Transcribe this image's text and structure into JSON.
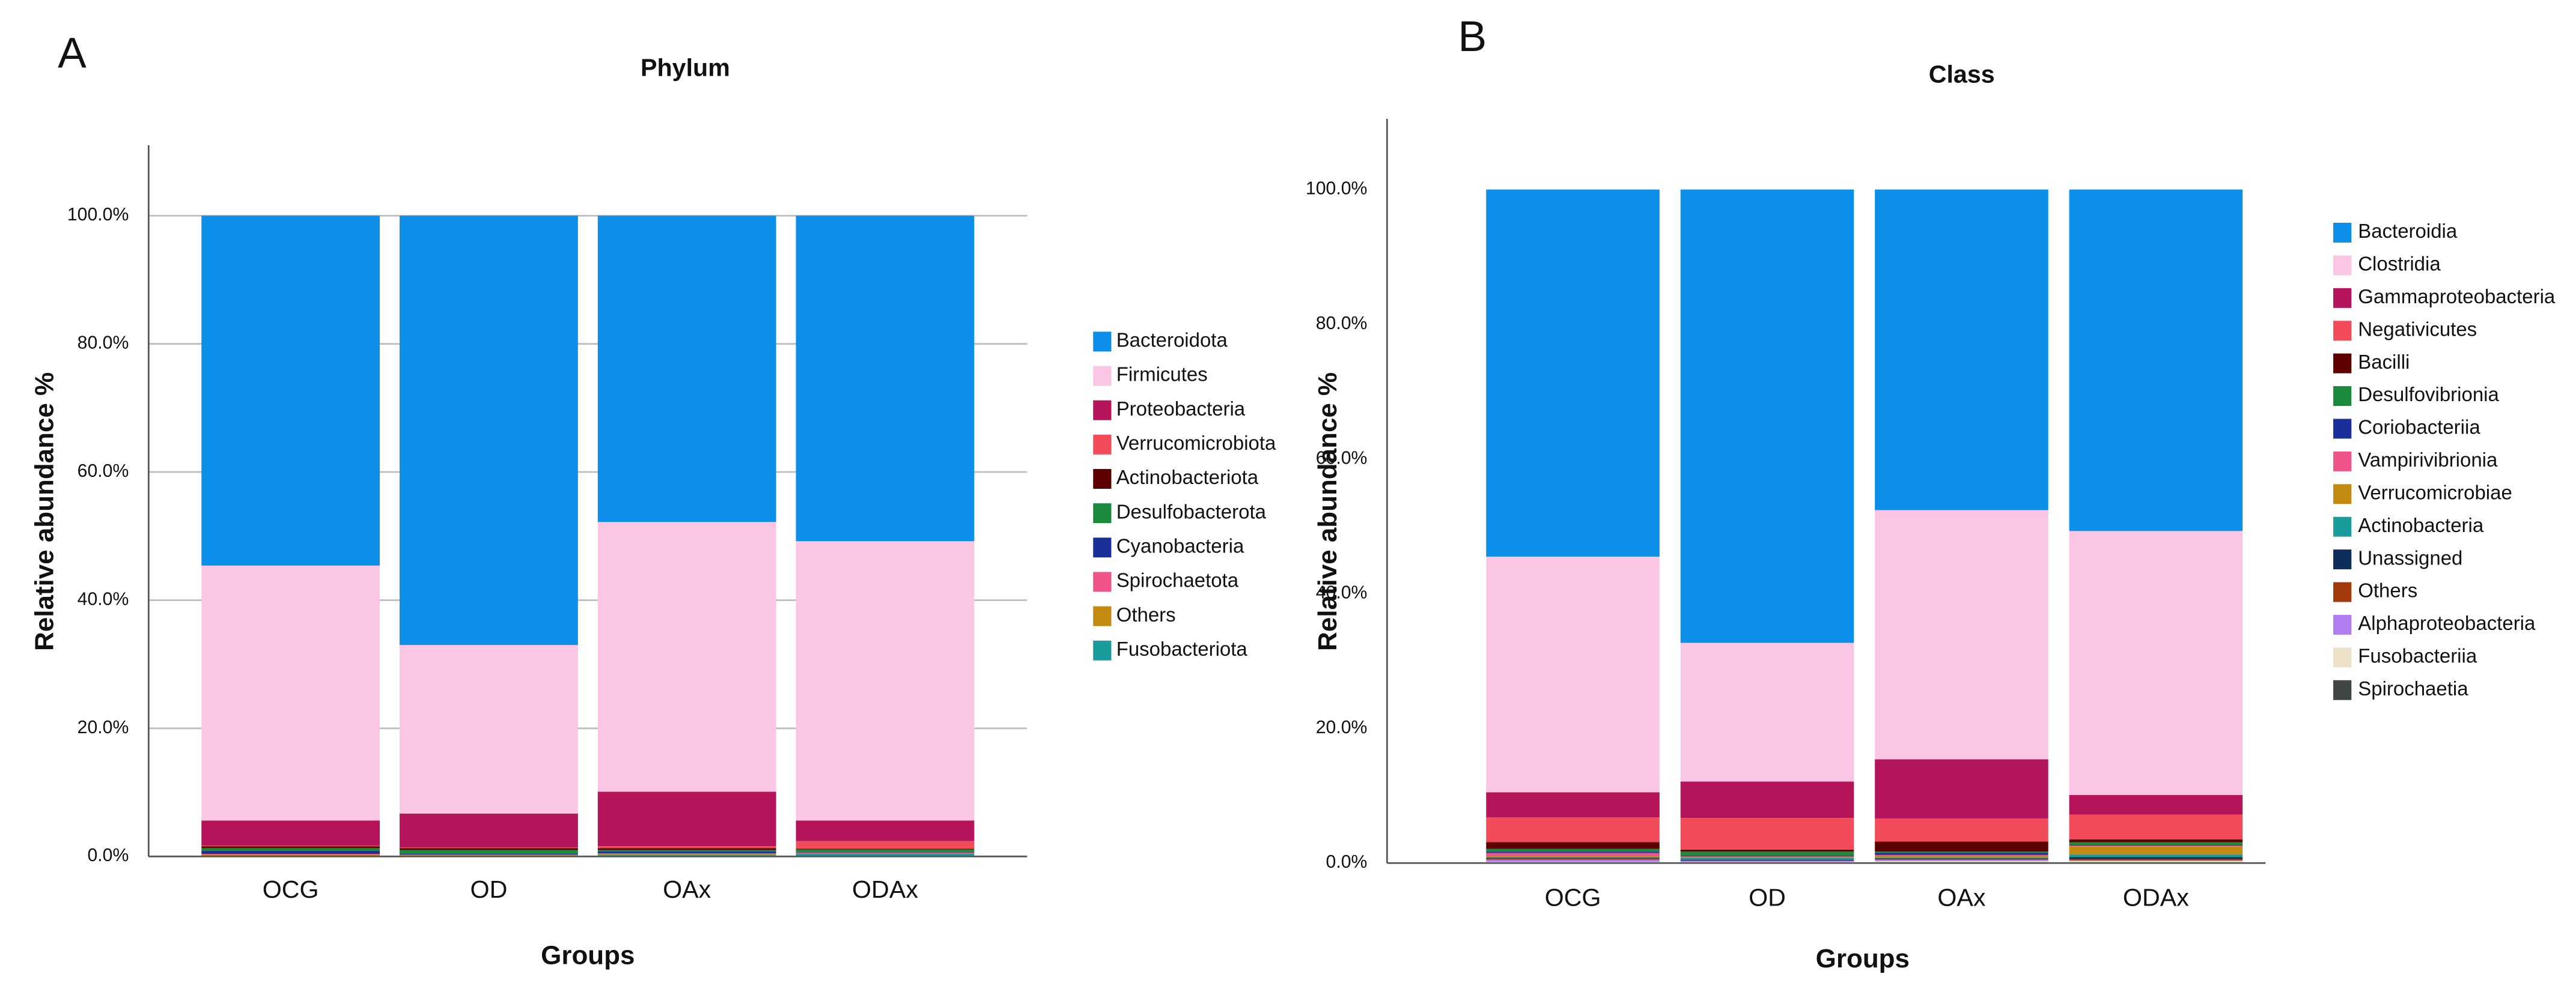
{
  "chart_data": [
    {
      "type": "stacked_bar",
      "label": "A",
      "title": "Phylum",
      "x_label": "Groups",
      "y_label": "Relative abundance %",
      "categories": [
        "OCG",
        "OD",
        "OAx",
        "ODAx"
      ],
      "ylim": [
        0,
        111
      ],
      "yticks": [
        {
          "value": 0,
          "label": "0.0%"
        },
        {
          "value": 20,
          "label": "20.0%"
        },
        {
          "value": 40,
          "label": "40.0%"
        },
        {
          "value": 60,
          "label": "60.0%"
        },
        {
          "value": 80,
          "label": "80.0%"
        },
        {
          "value": 100,
          "label": "100.0%"
        }
      ],
      "grid": true,
      "series": [
        {
          "name": "Bacteroidota",
          "color": "#0b8fe8",
          "values": [
            54.6,
            67.0,
            47.8,
            50.8
          ]
        },
        {
          "name": "Firmicutes",
          "color": "#fbc6e4",
          "values": [
            39.8,
            26.3,
            42.1,
            43.6
          ]
        },
        {
          "name": "Proteobacteria",
          "color": "#b5135a",
          "values": [
            3.9,
            5.3,
            8.5,
            3.2
          ]
        },
        {
          "name": "Verrucomicrobiota",
          "color": "#f24b5a",
          "values": [
            0.1,
            0.1,
            0.3,
            1.2
          ]
        },
        {
          "name": "Actinobacteriota",
          "color": "#5c0000",
          "values": [
            0.3,
            0.3,
            0.3,
            0.1
          ]
        },
        {
          "name": "Desulfobacterota",
          "color": "#1b8a3c",
          "values": [
            0.4,
            0.6,
            0.2,
            0.4
          ]
        },
        {
          "name": "Cyanobacteria",
          "color": "#1b2f9b",
          "values": [
            0.5,
            0.1,
            0.3,
            0.1
          ]
        },
        {
          "name": "Spirochaetota",
          "color": "#f0528a",
          "values": [
            0.1,
            0.1,
            0.1,
            0.1
          ]
        },
        {
          "name": "Others",
          "color": "#c38a12",
          "values": [
            0.2,
            0.1,
            0.2,
            0.1
          ]
        },
        {
          "name": "Fusobacteriota",
          "color": "#1a9c9c",
          "values": [
            0.1,
            0.1,
            0.2,
            0.4
          ]
        }
      ]
    },
    {
      "type": "stacked_bar",
      "label": "B",
      "title": "Class",
      "x_label": "Groups",
      "y_label": "Relative abundance %",
      "categories": [
        "OCG",
        "OD",
        "OAx",
        "ODAx"
      ],
      "ylim": [
        0,
        110.5
      ],
      "yticks": [
        {
          "value": 0,
          "label": "0.0%"
        },
        {
          "value": 20,
          "label": "20.0%"
        },
        {
          "value": 40,
          "label": "40.0%"
        },
        {
          "value": 60,
          "label": "60.0%"
        },
        {
          "value": 80,
          "label": "80.0%"
        },
        {
          "value": 100,
          "label": "100.0%"
        }
      ],
      "grid": false,
      "series": [
        {
          "name": "Bacteroidia",
          "color": "#0b8fe8",
          "values": [
            54.5,
            67.3,
            47.6,
            50.7
          ]
        },
        {
          "name": "Clostridia",
          "color": "#fbc6e4",
          "values": [
            35.0,
            20.6,
            37.0,
            39.2
          ]
        },
        {
          "name": "Gammaproteobacteria",
          "color": "#b5135a",
          "values": [
            3.7,
            5.4,
            8.8,
            2.9
          ]
        },
        {
          "name": "Negativicutes",
          "color": "#f24b5a",
          "values": [
            3.7,
            4.7,
            3.4,
            3.7
          ]
        },
        {
          "name": "Bacilli",
          "color": "#5c0000",
          "values": [
            1.0,
            0.3,
            1.5,
            0.4
          ]
        },
        {
          "name": "Desulfovibrionia",
          "color": "#1b8a3c",
          "values": [
            0.4,
            0.6,
            0.2,
            0.4
          ]
        },
        {
          "name": "Coriobacteriia",
          "color": "#1b2f9b",
          "values": [
            0.2,
            0.1,
            0.3,
            0.1
          ]
        },
        {
          "name": "Vampirivibrionia",
          "color": "#f0528a",
          "values": [
            0.5,
            0.1,
            0.1,
            0.1
          ]
        },
        {
          "name": "Verrucomicrobiae",
          "color": "#c38a12",
          "values": [
            0.1,
            0.1,
            0.3,
            1.2
          ]
        },
        {
          "name": "Actinobacteria",
          "color": "#1a9c9c",
          "values": [
            0.1,
            0.3,
            0.1,
            0.4
          ]
        },
        {
          "name": "Unassigned",
          "color": "#0d2d5a",
          "values": [
            0.1,
            0.1,
            0.1,
            0.3
          ]
        },
        {
          "name": "Others",
          "color": "#a33a0c",
          "values": [
            0.2,
            0.1,
            0.1,
            0.2
          ]
        },
        {
          "name": "Alphaproteobacteria",
          "color": "#b07cf0",
          "values": [
            0.3,
            0.1,
            0.2,
            0.1
          ]
        },
        {
          "name": "Fusobacteriia",
          "color": "#ede0c8",
          "values": [
            0.1,
            0.1,
            0.2,
            0.2
          ]
        },
        {
          "name": "Spirochaetia",
          "color": "#404545",
          "values": [
            0.1,
            0.1,
            0.1,
            0.1
          ]
        }
      ]
    }
  ]
}
